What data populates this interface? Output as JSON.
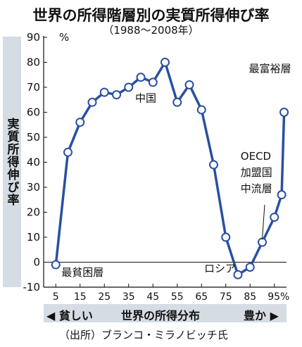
{
  "title": "世界の所得階層別の実質所得伸び率",
  "subtitle": "（1988～2008年）",
  "chart_data": {
    "type": "line",
    "ylabel": "実質所得伸び率",
    "yunit": "%",
    "ylim": [
      -10,
      90
    ],
    "yticks": [
      -10,
      0,
      10,
      20,
      30,
      40,
      50,
      60,
      70,
      80,
      90
    ],
    "xticks": [
      "5",
      "15",
      "25",
      "35",
      "45",
      "55",
      "65",
      "75",
      "85",
      "95%"
    ],
    "xlabel": "世界の所得分布",
    "xlabel_left": "◀ 貧しい",
    "xlabel_right": "豊か ▶",
    "x": [
      5,
      10,
      15,
      20,
      25,
      30,
      35,
      40,
      45,
      50,
      55,
      60,
      65,
      70,
      75,
      80,
      85,
      90,
      95,
      98,
      99
    ],
    "values": [
      -1,
      44,
      56,
      64,
      68,
      67,
      70,
      74,
      72,
      80,
      64,
      71,
      61,
      39,
      10,
      -5,
      -2,
      8,
      18,
      27,
      60
    ],
    "line_color": "#2a4fa2",
    "annotations": [
      {
        "text": "最貧困層",
        "x": 5,
        "y": -1
      },
      {
        "text": "中国",
        "x": 50,
        "y": 80
      },
      {
        "text": "ロシア",
        "x": 80,
        "y": -5
      },
      {
        "text": "OECD",
        "x": 90,
        "y": 8
      },
      {
        "text": "加盟国",
        "x": 90,
        "y": 8
      },
      {
        "text": "中流層",
        "x": 90,
        "y": 8
      },
      {
        "text": "最富裕層",
        "x": 99,
        "y": 60
      }
    ]
  },
  "source": "（出所）ブランコ・ミラノビッチ氏"
}
